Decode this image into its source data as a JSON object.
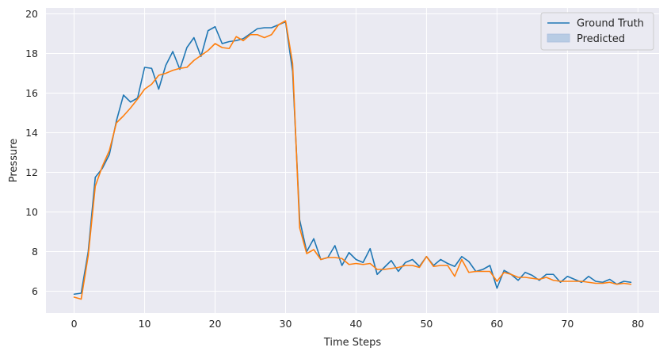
{
  "chart_data": {
    "type": "line",
    "xlabel": "Time Steps",
    "ylabel": "Pressure",
    "xlim": [
      -4,
      83
    ],
    "ylim": [
      4.9,
      20.3
    ],
    "xticks": [
      0,
      10,
      20,
      30,
      40,
      50,
      60,
      70,
      80
    ],
    "yticks": [
      6,
      8,
      10,
      12,
      14,
      16,
      18,
      20
    ],
    "grid": true,
    "legend_position": "top-right",
    "colors": {
      "plot_bg": "#eaeaf2",
      "grid": "#ffffff",
      "ground_truth": "#1f77b4",
      "predicted": "#ff7f0e",
      "legend_patch": "#b8cce4"
    },
    "x": [
      0,
      1,
      2,
      3,
      4,
      5,
      6,
      7,
      8,
      9,
      10,
      11,
      12,
      13,
      14,
      15,
      16,
      17,
      18,
      19,
      20,
      21,
      22,
      23,
      24,
      25,
      26,
      27,
      28,
      29,
      30,
      31,
      32,
      33,
      34,
      35,
      36,
      37,
      38,
      39,
      40,
      41,
      42,
      43,
      44,
      45,
      46,
      47,
      48,
      49,
      50,
      51,
      52,
      53,
      54,
      55,
      56,
      57,
      58,
      59,
      60,
      61,
      62,
      63,
      64,
      65,
      66,
      67,
      68,
      69,
      70,
      71,
      72,
      73,
      74,
      75,
      76,
      77,
      78,
      79
    ],
    "series": [
      {
        "name": "Ground Truth",
        "values": [
          5.85,
          5.9,
          8.0,
          11.75,
          12.2,
          12.9,
          14.6,
          15.9,
          15.55,
          15.75,
          17.3,
          17.25,
          16.2,
          17.4,
          18.1,
          17.2,
          18.3,
          18.8,
          17.85,
          19.15,
          19.35,
          18.5,
          18.6,
          18.65,
          18.75,
          19.0,
          19.25,
          19.3,
          19.3,
          19.45,
          19.6,
          17.1,
          9.6,
          8.0,
          8.65,
          7.6,
          7.7,
          8.3,
          7.3,
          7.95,
          7.6,
          7.45,
          8.15,
          6.85,
          7.2,
          7.55,
          7.0,
          7.45,
          7.6,
          7.25,
          7.75,
          7.3,
          7.6,
          7.4,
          7.25,
          7.75,
          7.5,
          7.0,
          7.1,
          7.3,
          6.15,
          7.05,
          6.85,
          6.55,
          6.95,
          6.8,
          6.55,
          6.85,
          6.85,
          6.45,
          6.75,
          6.6,
          6.45,
          6.75,
          6.5,
          6.45,
          6.6,
          6.35,
          6.5,
          6.45
        ]
      },
      {
        "name": "Predicted",
        "values": [
          5.7,
          5.6,
          7.8,
          11.3,
          12.3,
          13.1,
          14.5,
          14.85,
          15.25,
          15.7,
          16.2,
          16.45,
          16.9,
          17.0,
          17.15,
          17.25,
          17.3,
          17.65,
          17.9,
          18.15,
          18.5,
          18.3,
          18.25,
          18.85,
          18.65,
          18.95,
          18.95,
          18.8,
          18.95,
          19.45,
          19.65,
          17.5,
          9.2,
          7.9,
          8.1,
          7.6,
          7.7,
          7.7,
          7.65,
          7.35,
          7.4,
          7.35,
          7.4,
          7.1,
          7.1,
          7.15,
          7.2,
          7.3,
          7.3,
          7.2,
          7.75,
          7.25,
          7.3,
          7.3,
          6.75,
          7.6,
          6.95,
          7.0,
          7.0,
          7.0,
          6.5,
          6.95,
          6.85,
          6.7,
          6.7,
          6.65,
          6.6,
          6.7,
          6.55,
          6.5,
          6.5,
          6.5,
          6.5,
          6.45,
          6.4,
          6.4,
          6.45,
          6.35,
          6.4,
          6.35
        ]
      }
    ]
  }
}
